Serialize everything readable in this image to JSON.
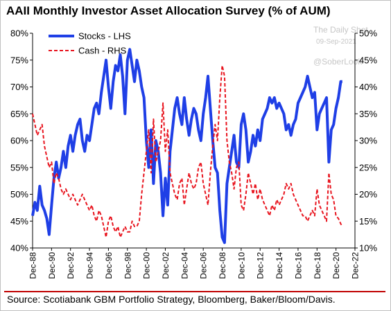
{
  "title": "AAII Monthly Investor Asset Allocation Survey (% of AUM)",
  "source": "Source: Scotiabank GBM Portfolio Strategy, Bloomberg, Baker/Bloom/Davis.",
  "watermark": {
    "line1": "The Daily Shot",
    "line2": "09-Sep-2021",
    "line3": "@SoberLook"
  },
  "colors": {
    "stocks": "#1f3fe6",
    "cash": "#e8141e",
    "accent_rule": "#c00000"
  },
  "chart_data": {
    "type": "line",
    "title": "AAII Monthly Investor Asset Allocation Survey (% of AUM)",
    "x_axis": {
      "type": "date",
      "range": [
        "1988-12",
        "2022-12"
      ],
      "ticks": [
        "Dec-88",
        "Dec-90",
        "Dec-92",
        "Dec-94",
        "Dec-96",
        "Dec-98",
        "Dec-00",
        "Dec-02",
        "Dec-04",
        "Dec-06",
        "Dec-08",
        "Dec-10",
        "Dec-12",
        "Dec-14",
        "Dec-16",
        "Dec-18",
        "Dec-20",
        "Dec-22"
      ],
      "tick_label_rotation": "vertical"
    },
    "y_left": {
      "range": [
        40,
        80
      ],
      "ticks": [
        "40%",
        "45%",
        "50%",
        "55%",
        "60%",
        "65%",
        "70%",
        "75%",
        "80%"
      ]
    },
    "y_right": {
      "range": [
        10,
        50
      ],
      "ticks": [
        "10%",
        "15%",
        "20%",
        "25%",
        "30%",
        "35%",
        "40%",
        "45%",
        "50%"
      ]
    },
    "grid": false,
    "legend": {
      "position": "top-left"
    },
    "series": [
      {
        "name": "Stocks - LHS",
        "axis": "left",
        "style": "solid",
        "points": [
          [
            "1988-12",
            46.0
          ],
          [
            "1989-03",
            48.5
          ],
          [
            "1989-06",
            47.0
          ],
          [
            "1989-09",
            51.5
          ],
          [
            "1989-12",
            48.0
          ],
          [
            "1990-03",
            47.0
          ],
          [
            "1990-06",
            45.5
          ],
          [
            "1990-09",
            42.5
          ],
          [
            "1990-12",
            48.0
          ],
          [
            "1991-03",
            53.0
          ],
          [
            "1991-06",
            56.0
          ],
          [
            "1991-09",
            53.0
          ],
          [
            "1991-12",
            55.0
          ],
          [
            "1992-03",
            58.0
          ],
          [
            "1992-06",
            55.0
          ],
          [
            "1992-09",
            59.0
          ],
          [
            "1992-12",
            61.0
          ],
          [
            "1993-03",
            58.0
          ],
          [
            "1993-06",
            61.0
          ],
          [
            "1993-09",
            63.0
          ],
          [
            "1993-12",
            64.0
          ],
          [
            "1994-03",
            60.0
          ],
          [
            "1994-06",
            58.0
          ],
          [
            "1994-09",
            61.0
          ],
          [
            "1994-12",
            60.0
          ],
          [
            "1995-03",
            63.0
          ],
          [
            "1995-06",
            66.0
          ],
          [
            "1995-09",
            67.0
          ],
          [
            "1995-12",
            65.0
          ],
          [
            "1996-03",
            69.0
          ],
          [
            "1996-06",
            72.0
          ],
          [
            "1996-09",
            75.0
          ],
          [
            "1996-12",
            70.0
          ],
          [
            "1997-03",
            66.0
          ],
          [
            "1997-06",
            71.0
          ],
          [
            "1997-09",
            74.0
          ],
          [
            "1997-12",
            73.0
          ],
          [
            "1998-03",
            76.0
          ],
          [
            "1998-06",
            72.0
          ],
          [
            "1998-09",
            65.0
          ],
          [
            "1998-12",
            75.0
          ],
          [
            "1999-03",
            77.0
          ],
          [
            "1999-06",
            74.0
          ],
          [
            "1999-09",
            71.0
          ],
          [
            "1999-12",
            75.0
          ],
          [
            "2000-03",
            73.0
          ],
          [
            "2000-06",
            70.0
          ],
          [
            "2000-09",
            68.0
          ],
          [
            "2000-12",
            60.0
          ],
          [
            "2001-03",
            55.0
          ],
          [
            "2001-06",
            62.0
          ],
          [
            "2001-09",
            52.0
          ],
          [
            "2001-12",
            60.0
          ],
          [
            "2002-03",
            58.0
          ],
          [
            "2002-06",
            54.0
          ],
          [
            "2002-09",
            46.0
          ],
          [
            "2002-12",
            53.0
          ],
          [
            "2003-03",
            48.0
          ],
          [
            "2003-06",
            58.0
          ],
          [
            "2003-09",
            62.0
          ],
          [
            "2003-12",
            66.0
          ],
          [
            "2004-03",
            68.0
          ],
          [
            "2004-06",
            65.0
          ],
          [
            "2004-09",
            63.0
          ],
          [
            "2004-12",
            68.0
          ],
          [
            "2005-03",
            64.0
          ],
          [
            "2005-06",
            61.0
          ],
          [
            "2005-09",
            64.0
          ],
          [
            "2005-12",
            66.0
          ],
          [
            "2006-03",
            65.0
          ],
          [
            "2006-06",
            62.0
          ],
          [
            "2006-09",
            60.0
          ],
          [
            "2006-12",
            65.0
          ],
          [
            "2007-03",
            68.0
          ],
          [
            "2007-06",
            72.0
          ],
          [
            "2007-09",
            66.0
          ],
          [
            "2007-12",
            60.0
          ],
          [
            "2008-03",
            55.0
          ],
          [
            "2008-06",
            54.0
          ],
          [
            "2008-09",
            47.0
          ],
          [
            "2008-12",
            42.0
          ],
          [
            "2009-03",
            41.0
          ],
          [
            "2009-06",
            52.0
          ],
          [
            "2009-09",
            55.0
          ],
          [
            "2009-12",
            58.0
          ],
          [
            "2010-03",
            61.0
          ],
          [
            "2010-06",
            56.0
          ],
          [
            "2010-09",
            55.0
          ],
          [
            "2010-12",
            63.0
          ],
          [
            "2011-03",
            65.0
          ],
          [
            "2011-06",
            62.0
          ],
          [
            "2011-09",
            56.0
          ],
          [
            "2011-12",
            58.0
          ],
          [
            "2012-03",
            61.0
          ],
          [
            "2012-06",
            59.0
          ],
          [
            "2012-09",
            62.0
          ],
          [
            "2012-12",
            60.0
          ],
          [
            "2013-03",
            64.0
          ],
          [
            "2013-06",
            65.0
          ],
          [
            "2013-09",
            66.0
          ],
          [
            "2013-12",
            68.0
          ],
          [
            "2014-03",
            67.0
          ],
          [
            "2014-06",
            68.0
          ],
          [
            "2014-09",
            66.0
          ],
          [
            "2014-12",
            67.0
          ],
          [
            "2015-03",
            66.0
          ],
          [
            "2015-06",
            65.0
          ],
          [
            "2015-09",
            62.0
          ],
          [
            "2015-12",
            63.0
          ],
          [
            "2016-03",
            61.0
          ],
          [
            "2016-06",
            63.0
          ],
          [
            "2016-09",
            64.0
          ],
          [
            "2016-12",
            67.0
          ],
          [
            "2017-03",
            68.0
          ],
          [
            "2017-06",
            69.0
          ],
          [
            "2017-09",
            70.0
          ],
          [
            "2017-12",
            72.0
          ],
          [
            "2018-03",
            70.0
          ],
          [
            "2018-06",
            68.0
          ],
          [
            "2018-09",
            69.0
          ],
          [
            "2018-12",
            62.0
          ],
          [
            "2019-03",
            65.0
          ],
          [
            "2019-06",
            66.0
          ],
          [
            "2019-09",
            67.0
          ],
          [
            "2019-12",
            68.0
          ],
          [
            "2020-03",
            56.0
          ],
          [
            "2020-06",
            62.0
          ],
          [
            "2020-09",
            63.0
          ],
          [
            "2020-12",
            66.0
          ],
          [
            "2021-03",
            68.0
          ],
          [
            "2021-06",
            71.0
          ],
          [
            "2021-08",
            71.0
          ]
        ]
      },
      {
        "name": "Cash - RHS",
        "axis": "right",
        "style": "dashed",
        "points": [
          [
            "1988-12",
            35.0
          ],
          [
            "1989-03",
            33.0
          ],
          [
            "1989-06",
            31.0
          ],
          [
            "1989-09",
            32.0
          ],
          [
            "1989-12",
            33.0
          ],
          [
            "1990-03",
            29.0
          ],
          [
            "1990-06",
            27.0
          ],
          [
            "1990-09",
            25.0
          ],
          [
            "1990-12",
            26.0
          ],
          [
            "1991-03",
            22.0
          ],
          [
            "1991-06",
            24.0
          ],
          [
            "1991-09",
            23.0
          ],
          [
            "1991-12",
            21.0
          ],
          [
            "1992-03",
            20.0
          ],
          [
            "1992-06",
            21.0
          ],
          [
            "1992-09",
            20.0
          ],
          [
            "1992-12",
            19.0
          ],
          [
            "1993-03",
            20.0
          ],
          [
            "1993-06",
            19.0
          ],
          [
            "1993-09",
            18.0
          ],
          [
            "1993-12",
            19.0
          ],
          [
            "1994-03",
            20.0
          ],
          [
            "1994-06",
            19.0
          ],
          [
            "1994-09",
            18.0
          ],
          [
            "1994-12",
            17.0
          ],
          [
            "1995-03",
            18.0
          ],
          [
            "1995-06",
            16.0
          ],
          [
            "1995-09",
            15.0
          ],
          [
            "1995-12",
            17.0
          ],
          [
            "1996-03",
            16.0
          ],
          [
            "1996-06",
            14.0
          ],
          [
            "1996-09",
            12.0
          ],
          [
            "1996-12",
            15.0
          ],
          [
            "1997-03",
            16.0
          ],
          [
            "1997-06",
            14.0
          ],
          [
            "1997-09",
            13.0
          ],
          [
            "1997-12",
            14.0
          ],
          [
            "1998-03",
            12.0
          ],
          [
            "1998-06",
            13.0
          ],
          [
            "1998-09",
            14.0
          ],
          [
            "1998-12",
            13.0
          ],
          [
            "1999-03",
            13.0
          ],
          [
            "1999-06",
            15.0
          ],
          [
            "1999-09",
            14.0
          ],
          [
            "1999-12",
            14.0
          ],
          [
            "2000-03",
            15.0
          ],
          [
            "2000-06",
            20.0
          ],
          [
            "2000-09",
            24.0
          ],
          [
            "2000-12",
            28.0
          ],
          [
            "2001-03",
            32.0
          ],
          [
            "2001-06",
            24.0
          ],
          [
            "2001-09",
            34.0
          ],
          [
            "2001-12",
            26.0
          ],
          [
            "2002-03",
            28.0
          ],
          [
            "2002-06",
            30.0
          ],
          [
            "2002-09",
            37.0
          ],
          [
            "2002-12",
            28.0
          ],
          [
            "2003-03",
            32.0
          ],
          [
            "2003-06",
            24.0
          ],
          [
            "2003-09",
            22.0
          ],
          [
            "2003-12",
            20.0
          ],
          [
            "2004-03",
            19.0
          ],
          [
            "2004-06",
            22.0
          ],
          [
            "2004-09",
            23.0
          ],
          [
            "2004-12",
            18.0
          ],
          [
            "2005-03",
            21.0
          ],
          [
            "2005-06",
            24.0
          ],
          [
            "2005-09",
            22.0
          ],
          [
            "2005-12",
            21.0
          ],
          [
            "2006-03",
            22.0
          ],
          [
            "2006-06",
            25.0
          ],
          [
            "2006-09",
            26.0
          ],
          [
            "2006-12",
            22.0
          ],
          [
            "2007-03",
            20.0
          ],
          [
            "2007-06",
            18.0
          ],
          [
            "2007-09",
            24.0
          ],
          [
            "2007-12",
            29.0
          ],
          [
            "2008-03",
            33.0
          ],
          [
            "2008-06",
            30.0
          ],
          [
            "2008-09",
            38.0
          ],
          [
            "2008-12",
            44.0
          ],
          [
            "2009-03",
            42.0
          ],
          [
            "2009-06",
            30.0
          ],
          [
            "2009-09",
            26.0
          ],
          [
            "2009-12",
            24.0
          ],
          [
            "2010-03",
            21.0
          ],
          [
            "2010-06",
            25.0
          ],
          [
            "2010-09",
            26.0
          ],
          [
            "2010-12",
            18.0
          ],
          [
            "2011-03",
            17.0
          ],
          [
            "2011-06",
            20.0
          ],
          [
            "2011-09",
            24.0
          ],
          [
            "2011-12",
            22.0
          ],
          [
            "2012-03",
            20.0
          ],
          [
            "2012-06",
            22.0
          ],
          [
            "2012-09",
            19.0
          ],
          [
            "2012-12",
            21.0
          ],
          [
            "2013-03",
            19.0
          ],
          [
            "2013-06",
            18.0
          ],
          [
            "2013-09",
            17.0
          ],
          [
            "2013-12",
            16.0
          ],
          [
            "2014-03",
            18.0
          ],
          [
            "2014-06",
            17.0
          ],
          [
            "2014-09",
            19.0
          ],
          [
            "2014-12",
            18.0
          ],
          [
            "2015-03",
            19.0
          ],
          [
            "2015-06",
            20.0
          ],
          [
            "2015-09",
            22.0
          ],
          [
            "2015-12",
            21.0
          ],
          [
            "2016-03",
            22.0
          ],
          [
            "2016-06",
            20.0
          ],
          [
            "2016-09",
            19.0
          ],
          [
            "2016-12",
            18.0
          ],
          [
            "2017-03",
            17.0
          ],
          [
            "2017-06",
            16.0
          ],
          [
            "2017-09",
            16.0
          ],
          [
            "2017-12",
            15.0
          ],
          [
            "2018-03",
            16.0
          ],
          [
            "2018-06",
            17.0
          ],
          [
            "2018-09",
            16.0
          ],
          [
            "2018-12",
            21.0
          ],
          [
            "2019-03",
            18.0
          ],
          [
            "2019-06",
            17.0
          ],
          [
            "2019-09",
            16.0
          ],
          [
            "2019-12",
            15.0
          ],
          [
            "2020-03",
            24.0
          ],
          [
            "2020-06",
            20.0
          ],
          [
            "2020-09",
            19.0
          ],
          [
            "2020-12",
            16.0
          ],
          [
            "2021-03",
            15.5
          ],
          [
            "2021-06",
            14.5
          ],
          [
            "2021-08",
            14.0
          ]
        ]
      }
    ]
  }
}
